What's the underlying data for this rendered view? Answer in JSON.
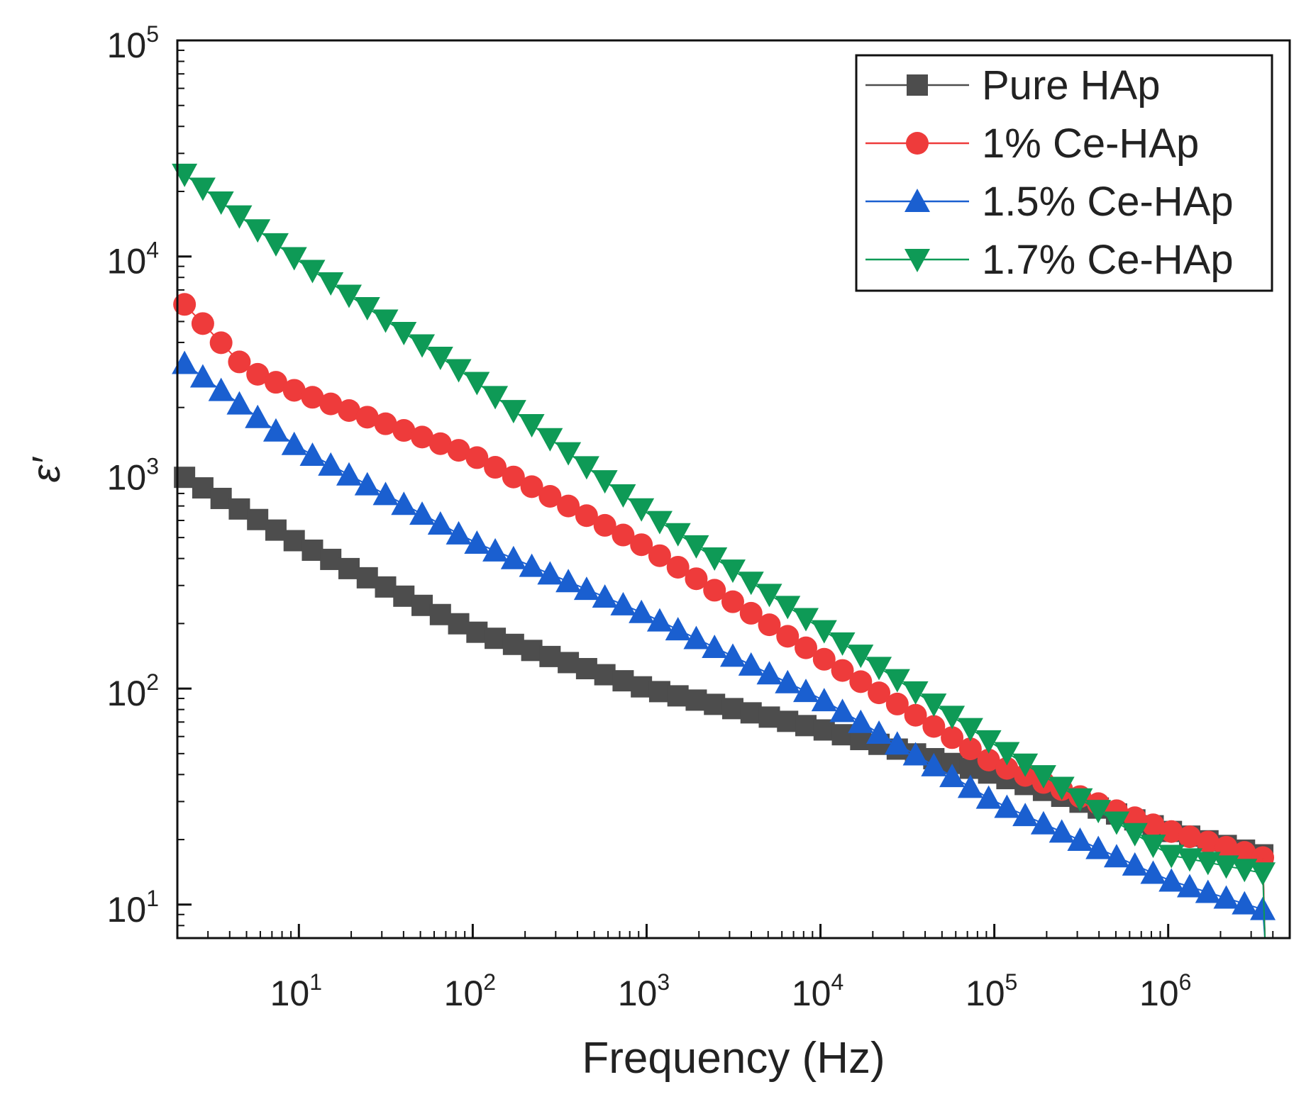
{
  "colors": {
    "pure": "#4d4d4d",
    "ce1": "#ee3b3b",
    "ce15": "#1a5fd0",
    "ce17": "#0e9a56",
    "axis": "#111111",
    "background": "#ffffff"
  },
  "chart_data": {
    "type": "scatter",
    "title": "",
    "xlabel": "Frequency (Hz)",
    "ylabel": "ε′",
    "xscale": "log",
    "yscale": "log",
    "xlim": [
      2,
      5000000
    ],
    "ylim": [
      7,
      100000
    ],
    "x_tick_labels": [
      {
        "value": 10,
        "base": "10",
        "exp": "1"
      },
      {
        "value": 100,
        "base": "10",
        "exp": "2"
      },
      {
        "value": 1000,
        "base": "10",
        "exp": "3"
      },
      {
        "value": 10000,
        "base": "10",
        "exp": "4"
      },
      {
        "value": 100000,
        "base": "10",
        "exp": "5"
      },
      {
        "value": 1000000,
        "base": "10",
        "exp": "6"
      }
    ],
    "y_tick_labels": [
      {
        "value": 10,
        "base": "10",
        "exp": "1"
      },
      {
        "value": 100,
        "base": "10",
        "exp": "2"
      },
      {
        "value": 1000,
        "base": "10",
        "exp": "3"
      },
      {
        "value": 10000,
        "base": "10",
        "exp": "4"
      },
      {
        "value": 100000,
        "base": "10",
        "exp": "5"
      }
    ],
    "legend_position": "top-right",
    "x_start": 2.2,
    "x_end": 3500000,
    "points_per_series": 60,
    "series": [
      {
        "name": "Pure HAp",
        "marker": "square",
        "color": "#4d4d4d",
        "control_points": [
          [
            2.2,
            950
          ],
          [
            10,
            470
          ],
          [
            100,
            185
          ],
          [
            1000,
            100
          ],
          [
            10000,
            65
          ],
          [
            100000,
            40
          ],
          [
            1000000,
            22
          ],
          [
            3500000,
            17
          ]
        ]
      },
      {
        "name": "1% Ce-HAp",
        "marker": "circle",
        "color": "#ee3b3b",
        "control_points": [
          [
            2.2,
            6000
          ],
          [
            5,
            3000
          ],
          [
            10,
            2350
          ],
          [
            100,
            1200
          ],
          [
            1000,
            450
          ],
          [
            10000,
            140
          ],
          [
            100000,
            45
          ],
          [
            1000000,
            22
          ],
          [
            3500000,
            16.5
          ]
        ]
      },
      {
        "name": "1.5% Ce-HAp",
        "marker": "triangle-up",
        "color": "#1a5fd0",
        "control_points": [
          [
            2.2,
            3200
          ],
          [
            10,
            1300
          ],
          [
            100,
            480
          ],
          [
            1000,
            220
          ],
          [
            10000,
            90
          ],
          [
            100000,
            30
          ],
          [
            1000000,
            13
          ],
          [
            3500000,
            9.5
          ]
        ]
      },
      {
        "name": "1.7% Ce-HAp",
        "marker": "triangle-down",
        "color": "#0e9a56",
        "control_points": [
          [
            2.2,
            24000
          ],
          [
            10,
            9500
          ],
          [
            100,
            2700
          ],
          [
            1000,
            650
          ],
          [
            10000,
            190
          ],
          [
            100000,
            55
          ],
          [
            1000000,
            17
          ],
          [
            3500000,
            14
          ]
        ]
      }
    ]
  }
}
